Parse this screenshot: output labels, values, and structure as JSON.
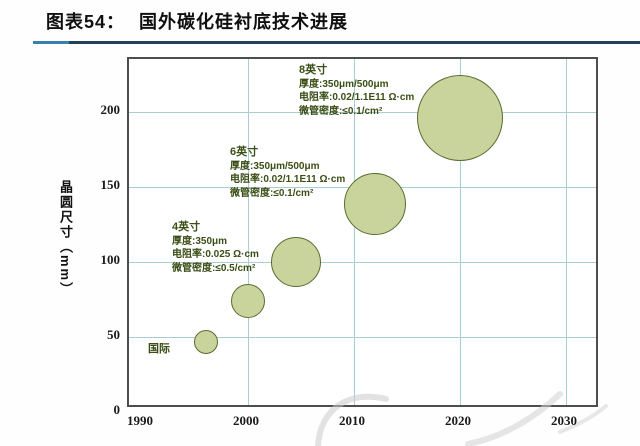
{
  "header": {
    "title_prefix": "图表54：",
    "title_text": "国外碳化硅衬底技术进展"
  },
  "chart_data": {
    "type": "scatter",
    "subtype": "bubble",
    "title": "国外碳化硅衬底技术进展",
    "xlabel": "",
    "ylabel": "晶圆尺寸（mm）",
    "x_ticks": [
      1990,
      2000,
      2010,
      2020,
      2030
    ],
    "y_ticks": [
      0,
      50,
      100,
      150,
      200
    ],
    "xlim": [
      1988.8,
      2033.5
    ],
    "ylim": [
      0,
      235
    ],
    "grid": true,
    "legend": "none",
    "bubbles": [
      {
        "name": "intl-2inch",
        "x": 1996,
        "y": 47,
        "r": 12
      },
      {
        "name": "3inch",
        "x": 2000,
        "y": 74,
        "r": 17
      },
      {
        "name": "4inch",
        "x": 2004.5,
        "y": 100,
        "r": 25
      },
      {
        "name": "6inch",
        "x": 2012,
        "y": 139,
        "r": 31
      },
      {
        "name": "8inch",
        "x": 2020,
        "y": 196,
        "r": 43
      }
    ],
    "annotations": [
      {
        "id": "ann8",
        "lines": [
          "8英寸",
          "厚度:350μm/500μm",
          "电阻率:0.02/1.1E11 Ω·cm",
          "微管密度:≤0.1/cm²"
        ]
      },
      {
        "id": "ann6",
        "lines": [
          "6英寸",
          "厚度:350μm/500μm",
          "电阻率:0.02/1.1E11 Ω·cm",
          "微管密度:≤0.1/cm²"
        ]
      },
      {
        "id": "ann4",
        "lines": [
          "4英寸",
          "厚度:350μm",
          "电阻率:0.025 Ω·cm",
          "微管密度:≤0.5/cm²"
        ]
      },
      {
        "id": "intl",
        "lines": [
          "国际"
        ]
      }
    ],
    "colors": {
      "bubble_fill": "#c8d49c",
      "bubble_border": "#5a6b2f",
      "grid": "#a9ced2",
      "annotation_text": "#3a4e16",
      "axis_border": "#4d4d4d",
      "title_underline": "#23405c",
      "title_underline_accent": "#3b7fad",
      "watermark": "#c9c9c9"
    }
  }
}
